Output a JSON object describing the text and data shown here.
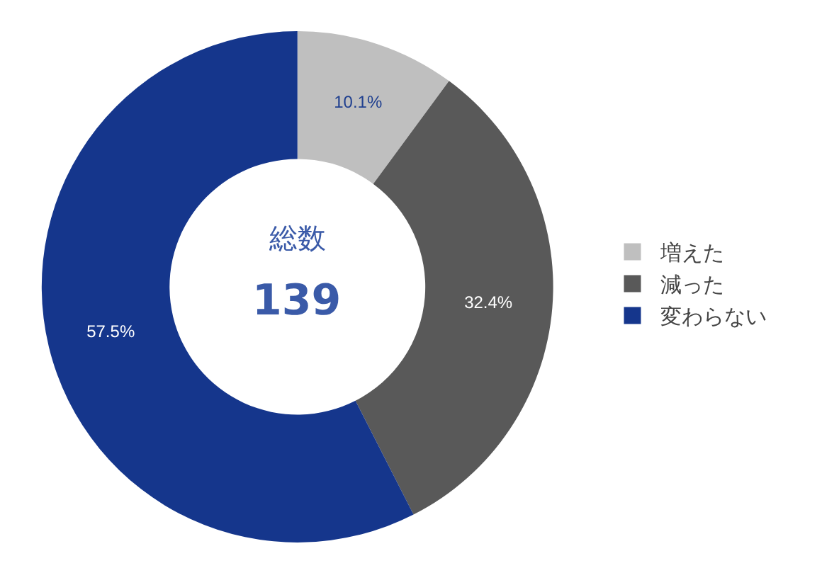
{
  "chart_data": {
    "type": "donut",
    "categories": [
      "増えた",
      "減った",
      "変わらない"
    ],
    "values": [
      10.1,
      32.4,
      57.5
    ],
    "colors": [
      "#bfbfbf",
      "#595959",
      "#15368c"
    ],
    "value_labels": [
      "10.1%",
      "32.4%",
      "57.5%"
    ],
    "annotations": [
      "総数",
      "139"
    ],
    "legend": "right"
  }
}
